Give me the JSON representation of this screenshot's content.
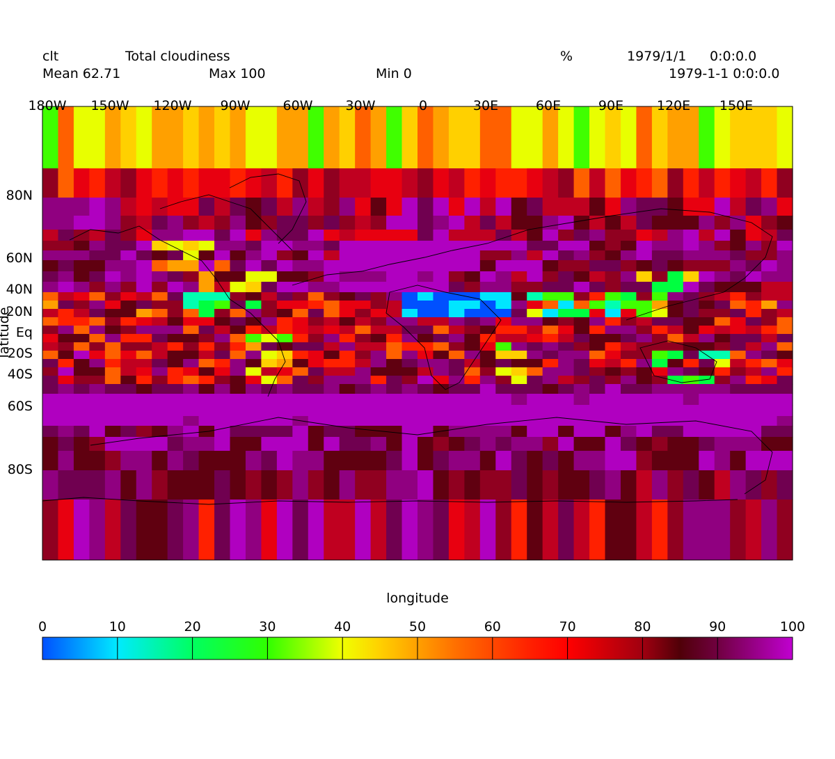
{
  "header": {
    "variable": "clt",
    "long_name": "Total cloudiness",
    "units": "%",
    "date": "1979/1/1",
    "time": "0:0:0.0",
    "mean": "Mean 62.71",
    "max": "Max 100",
    "min": "Min 0",
    "datetime": "1979-1-1 0:0:0.0"
  },
  "colors": {
    "scale": [
      "#0050ff",
      "#00e6ff",
      "#00ffb0",
      "#00ff40",
      "#40ff00",
      "#e8ff00",
      "#ffd000",
      "#ffa000",
      "#ff6000",
      "#ff2000",
      "#e80010",
      "#c00020",
      "#900020",
      "#600010",
      "#700050",
      "#900080",
      "#b000c0"
    ]
  },
  "chart_data": {
    "type": "heatmap",
    "title": "Total cloudiness",
    "variable": "clt",
    "units": "%",
    "mean": 62.71,
    "max": 100,
    "min": 0,
    "xlabel": "longitude",
    "ylabel": "latitude",
    "x_ticks": [
      "180W",
      "150W",
      "120W",
      "90W",
      "60W",
      "30W",
      "0",
      "30E",
      "60E",
      "90E",
      "120E",
      "150E"
    ],
    "y_ticks": [
      "80N",
      "60N",
      "40N",
      "20N",
      "Eq",
      "20S",
      "40S",
      "60S",
      "80S"
    ],
    "colorbar_ticks": [
      "0",
      "10",
      "20",
      "30",
      "40",
      "50",
      "60",
      "70",
      "80",
      "90",
      "100"
    ],
    "value_range": [
      0,
      100
    ]
  }
}
